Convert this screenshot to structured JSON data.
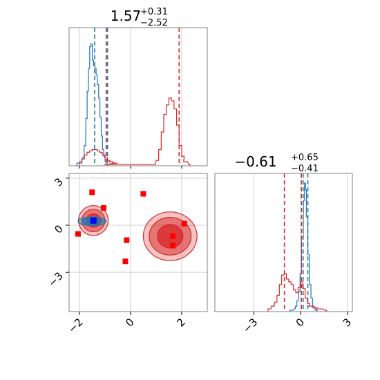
{
  "chart_data": {
    "type": "corner",
    "parameters": [
      {
        "title_value": "1.57",
        "title_plus": "+0.31",
        "title_minus": "−2.52",
        "range": [
          -2.4,
          3.0
        ],
        "ticks": [
          {
            "value": -2,
            "label": "−2"
          },
          {
            "value": 0,
            "label": "0"
          },
          {
            "value": 2,
            "label": "2"
          }
        ]
      },
      {
        "title_value": "−0.61",
        "title_plus": "+0.65",
        "title_minus": "−0.41",
        "range": [
          -5.5,
          3.3
        ],
        "ticks": [
          {
            "value": -3,
            "label": "−3"
          },
          {
            "value": 0,
            "label": "0"
          },
          {
            "value": 3,
            "label": "3"
          }
        ]
      }
    ],
    "series": [
      {
        "color": "#1f77b4",
        "marginal_lines_x": [
          -1.4,
          -0.9
        ],
        "marginal_lines_y": [
          0.15,
          0.45
        ],
        "marginal_x": {
          "bins": [
            [
              -2.05,
              0.02
            ],
            [
              -1.95,
              0.03
            ],
            [
              -1.85,
              0.06
            ],
            [
              -1.78,
              0.15
            ],
            [
              -1.72,
              0.35
            ],
            [
              -1.67,
              0.55
            ],
            [
              -1.62,
              0.72
            ],
            [
              -1.57,
              0.88
            ],
            [
              -1.52,
              0.9
            ],
            [
              -1.47,
              0.78
            ],
            [
              -1.42,
              0.74
            ],
            [
              -1.37,
              0.72
            ],
            [
              -1.32,
              0.67
            ],
            [
              -1.27,
              0.6
            ],
            [
              -1.22,
              0.5
            ],
            [
              -1.17,
              0.36
            ],
            [
              -1.12,
              0.22
            ],
            [
              -1.07,
              0.12
            ],
            [
              -1.02,
              0.07
            ],
            [
              -0.97,
              0.03
            ],
            [
              -0.92,
              0.01
            ]
          ]
        },
        "marginal_y": {
          "bins": [
            [
              -0.6,
              0.01
            ],
            [
              -0.4,
              0.02
            ],
            [
              -0.3,
              0.04
            ],
            [
              -0.2,
              0.08
            ],
            [
              -0.1,
              0.15
            ],
            [
              0.0,
              0.28
            ],
            [
              0.1,
              0.55
            ],
            [
              0.2,
              0.82
            ],
            [
              0.27,
              0.95
            ],
            [
              0.33,
              0.9
            ],
            [
              0.4,
              0.7
            ],
            [
              0.5,
              0.42
            ],
            [
              0.6,
              0.2
            ],
            [
              0.7,
              0.1
            ],
            [
              0.8,
              0.04
            ],
            [
              0.9,
              0.02
            ],
            [
              1.0,
              0.01
            ]
          ]
        },
        "contours": [
          {
            "cx": -1.5,
            "cy": 0.25,
            "rx": 0.55,
            "ry": 0.28,
            "opacity": 0.4
          },
          {
            "cx": -1.5,
            "cy": 0.25,
            "rx": 0.4,
            "ry": 0.2,
            "opacity": 0.6
          },
          {
            "cx": -1.5,
            "cy": 0.25,
            "rx": 0.22,
            "ry": 0.12,
            "opacity": 0.8
          }
        ]
      },
      {
        "color": "#d62728",
        "marginal_lines_x": [
          -0.95,
          1.9
        ],
        "marginal_lines_y": [
          -1.05,
          0.04
        ],
        "marginal_x": {
          "bins": [
            [
              -1.95,
              0.02
            ],
            [
              -1.85,
              0.05
            ],
            [
              -1.75,
              0.08
            ],
            [
              -1.65,
              0.1
            ],
            [
              -1.55,
              0.11
            ],
            [
              -1.45,
              0.12
            ],
            [
              -1.35,
              0.12
            ],
            [
              -1.25,
              0.11
            ],
            [
              -1.15,
              0.1
            ],
            [
              -1.05,
              0.08
            ],
            [
              -0.95,
              0.06
            ],
            [
              -0.85,
              0.04
            ],
            [
              -0.75,
              0.03
            ],
            [
              -0.6,
              0.02
            ],
            [
              -0.4,
              0.01
            ],
            [
              0.9,
              0.01
            ],
            [
              1.05,
              0.04
            ],
            [
              1.15,
              0.12
            ],
            [
              1.25,
              0.25
            ],
            [
              1.35,
              0.38
            ],
            [
              1.45,
              0.45
            ],
            [
              1.55,
              0.5
            ],
            [
              1.65,
              0.48
            ],
            [
              1.75,
              0.42
            ],
            [
              1.85,
              0.3
            ],
            [
              1.95,
              0.15
            ],
            [
              2.05,
              0.07
            ],
            [
              2.15,
              0.03
            ],
            [
              2.3,
              0.01
            ]
          ]
        },
        "marginal_y": {
          "bins": [
            [
              -2.0,
              0.02
            ],
            [
              -1.8,
              0.04
            ],
            [
              -1.6,
              0.07
            ],
            [
              -1.45,
              0.12
            ],
            [
              -1.3,
              0.2
            ],
            [
              -1.15,
              0.27
            ],
            [
              -1.0,
              0.28
            ],
            [
              -0.85,
              0.24
            ],
            [
              -0.7,
              0.22
            ],
            [
              -0.55,
              0.2
            ],
            [
              -0.4,
              0.16
            ],
            [
              -0.25,
              0.14
            ],
            [
              -0.1,
              0.18
            ],
            [
              0.05,
              0.22
            ],
            [
              0.2,
              0.17
            ],
            [
              0.35,
              0.1
            ],
            [
              0.5,
              0.06
            ],
            [
              0.65,
              0.04
            ],
            [
              0.9,
              0.03
            ],
            [
              1.2,
              0.02
            ],
            [
              1.6,
              0.01
            ]
          ]
        },
        "contours": [
          {
            "cx": -1.45,
            "cy": 0.3,
            "rx": 0.58,
            "ry": 0.95,
            "opacity": 0.28
          },
          {
            "cx": -1.45,
            "cy": 0.3,
            "rx": 0.45,
            "ry": 0.72,
            "opacity": 0.5
          },
          {
            "cx": -1.45,
            "cy": 0.3,
            "rx": 0.28,
            "ry": 0.42,
            "opacity": 0.75
          },
          {
            "cx": 1.55,
            "cy": -0.7,
            "rx": 1.05,
            "ry": 1.55,
            "opacity": 0.28
          },
          {
            "cx": 1.55,
            "cy": -0.7,
            "rx": 0.82,
            "ry": 1.2,
            "opacity": 0.5
          },
          {
            "cx": 1.55,
            "cy": -0.7,
            "rx": 0.5,
            "ry": 0.75,
            "opacity": 0.75
          }
        ]
      }
    ],
    "scatter_points": {
      "color": "#ff0000",
      "points": [
        [
          -1.5,
          2.1
        ],
        [
          0.5,
          2.0
        ],
        [
          -1.05,
          1.1
        ],
        [
          2.1,
          0.1
        ],
        [
          -2.05,
          -0.55
        ],
        [
          -0.15,
          -0.95
        ],
        [
          1.65,
          -0.7
        ],
        [
          1.65,
          -1.3
        ],
        [
          -0.2,
          -2.3
        ]
      ]
    },
    "highlight_point": {
      "color": "#0000ff",
      "x": -1.45,
      "y": 0.3
    },
    "grid": true,
    "legend": "none"
  }
}
